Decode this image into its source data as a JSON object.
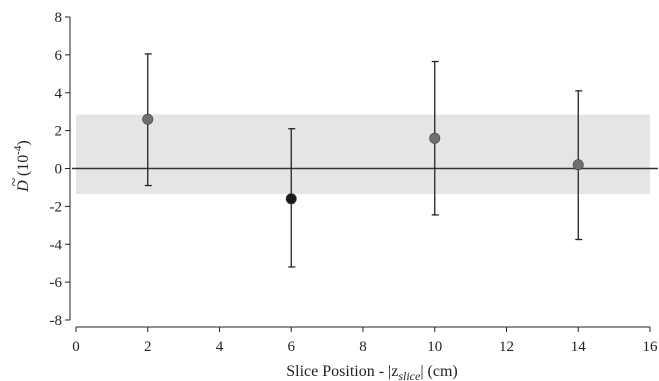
{
  "chart_data": {
    "type": "scatter",
    "xlabel_main": "Slice Position - |z",
    "xlabel_sub": "slice",
    "xlabel_end": "| (cm)",
    "ylabel_main": "D",
    "ylabel_tilde": "~",
    "ylabel_unit": " (10",
    "ylabel_exp": "-4",
    "ylabel_close": ")",
    "xlim": [
      0,
      16
    ],
    "ylim": [
      -8,
      8
    ],
    "xticks": [
      "0",
      "2",
      "4",
      "6",
      "8",
      "10",
      "12",
      "14",
      "16"
    ],
    "yticks": [
      "-8",
      "-6",
      "-4",
      "-2",
      "0",
      "2",
      "4",
      "6",
      "8"
    ],
    "band": {
      "y_low": -1.35,
      "y_high": 2.85
    },
    "zero_line": 0,
    "points": [
      {
        "x": 2,
        "y": 2.6,
        "err_low": -0.9,
        "err_high": 6.05,
        "color": "#6f6f6f"
      },
      {
        "x": 6,
        "y": -1.6,
        "err_low": -5.2,
        "err_high": 2.1,
        "color": "#1a1a1a"
      },
      {
        "x": 10,
        "y": 1.6,
        "err_low": -2.45,
        "err_high": 5.65,
        "color": "#6f6f6f"
      },
      {
        "x": 14,
        "y": 0.2,
        "err_low": -3.75,
        "err_high": 4.1,
        "color": "#6f6f6f"
      }
    ],
    "colors": {
      "band": "#e4e5e7",
      "axis": "#222222",
      "error_bar": "#222222"
    }
  }
}
